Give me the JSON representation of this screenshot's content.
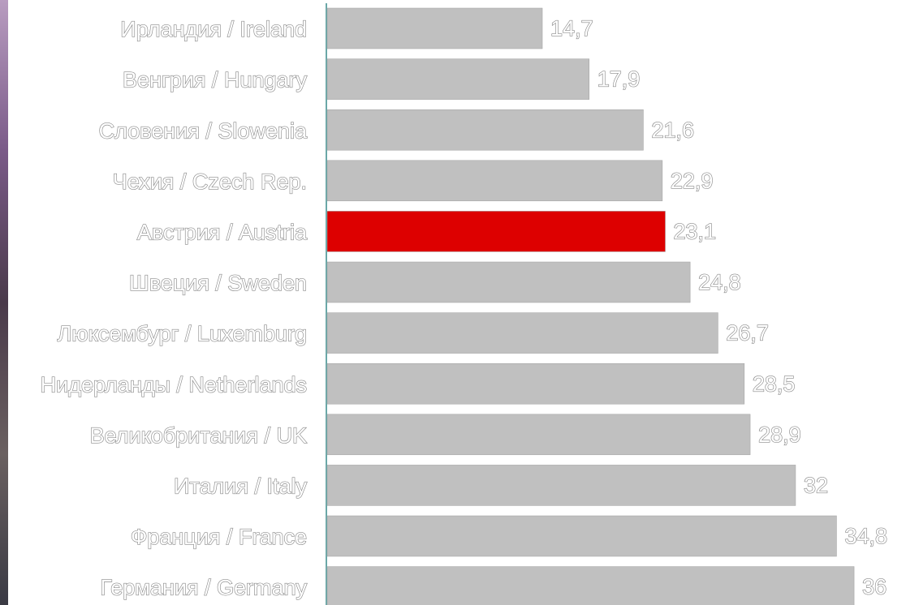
{
  "chart_data": {
    "type": "barh",
    "categories": [
      "Ирландия / Ireland",
      "Венгрия / Hungary",
      "Словения / Slowenia",
      "Чехия / Czech Rep.",
      "Австрия / Austria",
      "Швеция / Sweden",
      "Люксембург / Luxemburg",
      "Нидерланды / Netherlands",
      "Великобритания / UK",
      "Италия / Italy",
      "Франция / France",
      "Германия / Germany"
    ],
    "values": [
      14.7,
      17.9,
      21.6,
      22.9,
      23.1,
      24.8,
      26.7,
      28.5,
      28.9,
      32,
      34.8,
      36
    ],
    "value_labels": [
      "14,7",
      "17,9",
      "21,6",
      "22,9",
      "23,1",
      "24,8",
      "26,7",
      "28,5",
      "28,9",
      "32",
      "34,8",
      "36"
    ],
    "colors": [
      "#c0c0c0",
      "#c0c0c0",
      "#c0c0c0",
      "#c0c0c0",
      "#dd0000",
      "#c0c0c0",
      "#c0c0c0",
      "#c0c0c0",
      "#c0c0c0",
      "#c0c0c0",
      "#c0c0c0",
      "#c0c0c0"
    ]
  }
}
